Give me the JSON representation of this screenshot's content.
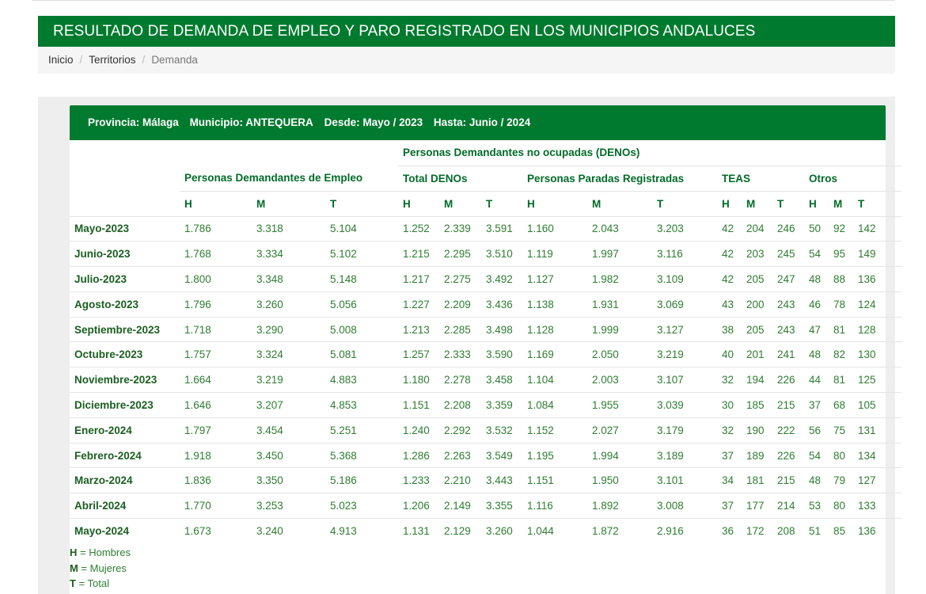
{
  "page_title": "RESULTADO DE DEMANDA DE EMPLEO Y PARO REGISTRADO EN LOS MUNICIPIOS ANDALUCES",
  "breadcrumb": {
    "items": [
      "Inicio",
      "Territorios",
      "Demanda"
    ]
  },
  "filter": {
    "provincia": "Provincia: Málaga",
    "municipio": "Municipio: ANTEQUERA",
    "desde": "Desde: Mayo / 2023",
    "hasta": "Hasta: Junio / 2024"
  },
  "table": {
    "group_top": "Personas Demandantes no ocupadas (DENOs)",
    "group_pde": "Personas Demandantes de Empleo",
    "group_total_denos": "Total DENOs",
    "group_parados": "Personas Paradas Registradas",
    "group_teas": "TEAS",
    "group_otros": "Otros",
    "sub": [
      "H",
      "M",
      "T",
      "H",
      "M",
      "T",
      "H",
      "M",
      "T",
      "H",
      "M",
      "T",
      "H",
      "M",
      "T"
    ],
    "rows": [
      [
        "Mayo-2023",
        "1.786",
        "3.318",
        "5.104",
        "1.252",
        "2.339",
        "3.591",
        "1.160",
        "2.043",
        "3.203",
        "42",
        "204",
        "246",
        "50",
        "92",
        "142"
      ],
      [
        "Junio-2023",
        "1.768",
        "3.334",
        "5.102",
        "1.215",
        "2.295",
        "3.510",
        "1.119",
        "1.997",
        "3.116",
        "42",
        "203",
        "245",
        "54",
        "95",
        "149"
      ],
      [
        "Julio-2023",
        "1.800",
        "3.348",
        "5.148",
        "1.217",
        "2.275",
        "3.492",
        "1.127",
        "1.982",
        "3.109",
        "42",
        "205",
        "247",
        "48",
        "88",
        "136"
      ],
      [
        "Agosto-2023",
        "1.796",
        "3.260",
        "5.056",
        "1.227",
        "2.209",
        "3.436",
        "1.138",
        "1.931",
        "3.069",
        "43",
        "200",
        "243",
        "46",
        "78",
        "124"
      ],
      [
        "Septiembre-2023",
        "1.718",
        "3.290",
        "5.008",
        "1.213",
        "2.285",
        "3.498",
        "1.128",
        "1.999",
        "3.127",
        "38",
        "205",
        "243",
        "47",
        "81",
        "128"
      ],
      [
        "Octubre-2023",
        "1.757",
        "3.324",
        "5.081",
        "1.257",
        "2.333",
        "3.590",
        "1.169",
        "2.050",
        "3.219",
        "40",
        "201",
        "241",
        "48",
        "82",
        "130"
      ],
      [
        "Noviembre-2023",
        "1.664",
        "3.219",
        "4.883",
        "1.180",
        "2.278",
        "3.458",
        "1.104",
        "2.003",
        "3.107",
        "32",
        "194",
        "226",
        "44",
        "81",
        "125"
      ],
      [
        "Diciembre-2023",
        "1.646",
        "3.207",
        "4.853",
        "1.151",
        "2.208",
        "3.359",
        "1.084",
        "1.955",
        "3.039",
        "30",
        "185",
        "215",
        "37",
        "68",
        "105"
      ],
      [
        "Enero-2024",
        "1.797",
        "3.454",
        "5.251",
        "1.240",
        "2.292",
        "3.532",
        "1.152",
        "2.027",
        "3.179",
        "32",
        "190",
        "222",
        "56",
        "75",
        "131"
      ],
      [
        "Febrero-2024",
        "1.918",
        "3.450",
        "5.368",
        "1.286",
        "2.263",
        "3.549",
        "1.195",
        "1.994",
        "3.189",
        "37",
        "189",
        "226",
        "54",
        "80",
        "134"
      ],
      [
        "Marzo-2024",
        "1.836",
        "3.350",
        "5.186",
        "1.233",
        "2.210",
        "3.443",
        "1.151",
        "1.950",
        "3.101",
        "34",
        "181",
        "215",
        "48",
        "79",
        "127"
      ],
      [
        "Abril-2024",
        "1.770",
        "3.253",
        "5.023",
        "1.206",
        "2.149",
        "3.355",
        "1.116",
        "1.892",
        "3.008",
        "37",
        "177",
        "214",
        "53",
        "80",
        "133"
      ],
      [
        "Mayo-2024",
        "1.673",
        "3.240",
        "4.913",
        "1.131",
        "2.129",
        "3.260",
        "1.044",
        "1.872",
        "2.916",
        "36",
        "172",
        "208",
        "51",
        "85",
        "136"
      ]
    ]
  },
  "legend": [
    {
      "key": "H",
      "text": " = Hombres"
    },
    {
      "key": "M",
      "text": " = Mujeres"
    },
    {
      "key": "T",
      "text": " = Total"
    }
  ],
  "colors": {
    "brand_green": "#007a2e",
    "text_green": "#2e7d32"
  }
}
